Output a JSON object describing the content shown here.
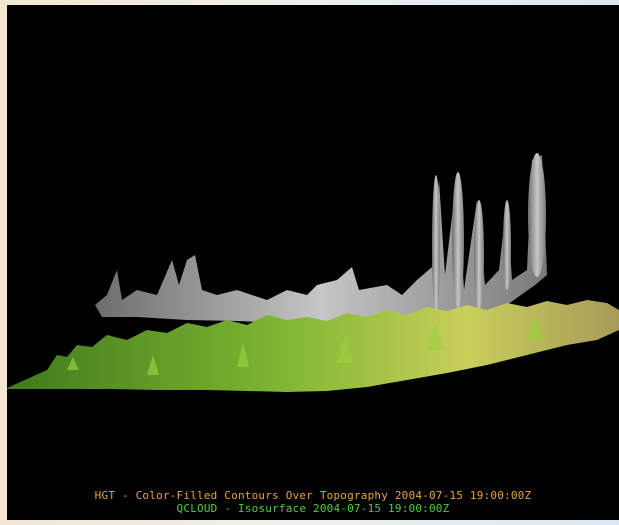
{
  "captions": {
    "line1": "HGT - Color-Filled Contours Over Topography 2004-07-15 19:00:00Z",
    "line2": "QCLOUD - Isosurface 2004-07-15 19:00:00Z"
  }
}
